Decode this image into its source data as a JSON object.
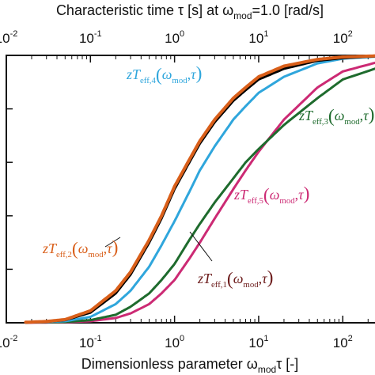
{
  "chart_data": {
    "type": "line",
    "xscale": "log",
    "xlim": [
      0.01,
      300
    ],
    "ylim": [
      0,
      1
    ],
    "grid": false,
    "title_top": {
      "main": "Characteristic time τ [s] at ω",
      "sub": "mod",
      "rest": "=1.0 [rad/s]"
    },
    "title_bottom": {
      "main": "Dimensionless parameter ω",
      "sub": "mod",
      "rest": "τ [-]"
    },
    "x_ticks": [
      {
        "value": 0.01,
        "base": "10",
        "exp": "-2"
      },
      {
        "value": 0.1,
        "base": "10",
        "exp": "-1"
      },
      {
        "value": 1,
        "base": "10",
        "exp": "0"
      },
      {
        "value": 10,
        "base": "10",
        "exp": "1"
      },
      {
        "value": 100,
        "base": "10",
        "exp": "2"
      }
    ],
    "series": [
      {
        "name": "zT_eff,1(ω_mod, τ)",
        "color": "#000000",
        "x": [
          0.017,
          0.03,
          0.05,
          0.1,
          0.2,
          0.3,
          0.5,
          0.7,
          1.0,
          1.5,
          2.0,
          3.0,
          5.0,
          7.0,
          10,
          20,
          50,
          100,
          300
        ],
        "y": [
          0.001,
          0.004,
          0.01,
          0.038,
          0.11,
          0.18,
          0.3,
          0.39,
          0.5,
          0.6,
          0.67,
          0.75,
          0.83,
          0.87,
          0.91,
          0.95,
          0.98,
          0.99,
          0.998
        ]
      },
      {
        "name": "zT_eff,2(ω_mod, τ)",
        "color": "#d95f1a",
        "x": [
          0.017,
          0.03,
          0.05,
          0.1,
          0.2,
          0.3,
          0.5,
          0.7,
          1.0,
          1.5,
          2.0,
          3.0,
          5.0,
          7.0,
          10,
          20,
          50,
          100,
          300
        ],
        "y": [
          0.002,
          0.005,
          0.012,
          0.045,
          0.12,
          0.19,
          0.31,
          0.4,
          0.51,
          0.61,
          0.68,
          0.76,
          0.84,
          0.88,
          0.92,
          0.96,
          0.985,
          0.994,
          0.999
        ]
      },
      {
        "name": "zT_eff,3(ω_mod, τ)",
        "color": "#1e6b2d",
        "x": [
          0.017,
          0.05,
          0.1,
          0.2,
          0.3,
          0.5,
          0.7,
          1.0,
          1.5,
          2.0,
          3.0,
          5.0,
          7.0,
          10,
          20,
          50,
          100,
          300
        ],
        "y": [
          0.001,
          0.003,
          0.01,
          0.03,
          0.06,
          0.11,
          0.16,
          0.22,
          0.31,
          0.37,
          0.45,
          0.54,
          0.6,
          0.65,
          0.74,
          0.84,
          0.91,
          0.96
        ]
      },
      {
        "name": "zT_eff,4(ω_mod, τ)",
        "color": "#2fa6dc",
        "x": [
          0.017,
          0.05,
          0.1,
          0.2,
          0.3,
          0.5,
          0.7,
          1.0,
          1.5,
          2.0,
          3.0,
          5.0,
          7.0,
          10,
          20,
          50,
          100,
          300
        ],
        "y": [
          0.001,
          0.006,
          0.022,
          0.07,
          0.12,
          0.21,
          0.29,
          0.38,
          0.49,
          0.57,
          0.66,
          0.76,
          0.81,
          0.86,
          0.92,
          0.97,
          0.988,
          0.997
        ]
      },
      {
        "name": "zT_eff,5(ω_mod, τ)",
        "color": "#cc2a74",
        "x": [
          0.017,
          0.05,
          0.1,
          0.2,
          0.3,
          0.5,
          0.7,
          1.0,
          1.5,
          2.0,
          3.0,
          5.0,
          7.0,
          10,
          20,
          50,
          100,
          300
        ],
        "y": [
          0.0,
          0.002,
          0.006,
          0.018,
          0.035,
          0.07,
          0.11,
          0.16,
          0.24,
          0.3,
          0.39,
          0.5,
          0.57,
          0.64,
          0.76,
          0.88,
          0.94,
          0.98
        ]
      }
    ],
    "annotations": [
      {
        "target": 3,
        "color": "#2fa6dc",
        "prefix": "zT",
        "sub": "eff,4",
        "omega_sub": "mod",
        "tau": "τ"
      },
      {
        "target": 2,
        "color": "#1e6b2d",
        "prefix": "zT",
        "sub": "eff,3",
        "omega_sub": "mod",
        "tau": "τ"
      },
      {
        "target": 4,
        "color": "#cc2a74",
        "prefix": "zT",
        "sub": "eff,5",
        "omega_sub": "mod",
        "tau": "τ"
      },
      {
        "target": 1,
        "color": "#d95f1a",
        "prefix": "zT",
        "sub": "eff,2",
        "omega_sub": "mod",
        "tau": "τ"
      },
      {
        "target": 0,
        "color": "#6b1a1a",
        "prefix": "zT",
        "sub": "eff,1",
        "omega_sub": "mod",
        "tau": "τ"
      }
    ]
  }
}
